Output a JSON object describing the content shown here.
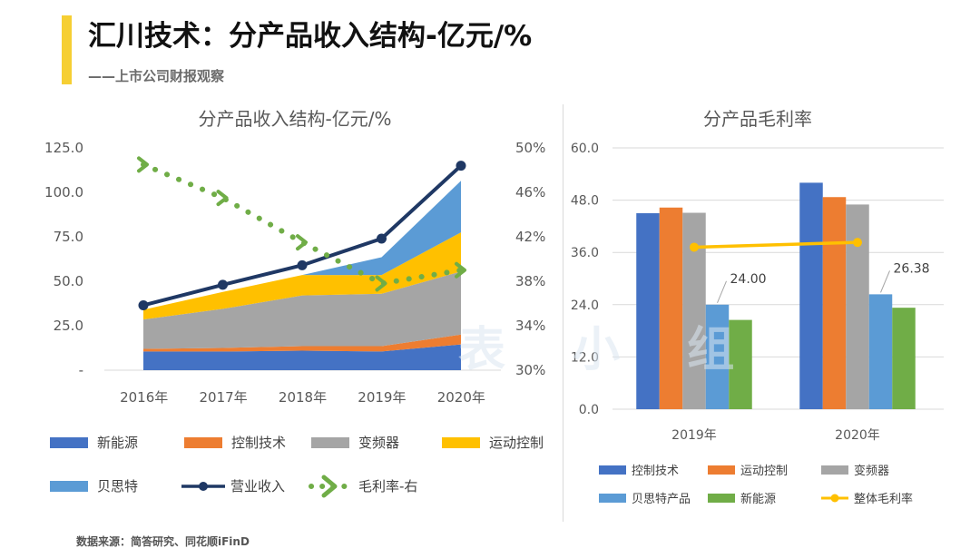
{
  "header": {
    "title": "汇川技术：分产品收入结构-亿元/%",
    "subtitle": "——上市公司财报观察"
  },
  "watermark": "表 小 组",
  "footer": {
    "source": "数据来源：简答研究、同花顺iFinD"
  },
  "colors": {
    "accent": "#f6cf33",
    "new_energy": "#4472c4",
    "control_tech": "#ed7d31",
    "inverter": "#a5a5a5",
    "motion_control": "#ffc000",
    "bes": "#5b9bd5",
    "revenue": "#1f3864",
    "margin_right": "#70ad47",
    "margin_green": "#70ad47",
    "overall_margin": "#ffc000"
  },
  "chart_data": [
    {
      "type": "area",
      "title": "分产品收入结构-亿元/%",
      "categories": [
        "2016年",
        "2017年",
        "2018年",
        "2019年",
        "2020年"
      ],
      "y_ticks": [
        "125.0",
        "100.0",
        "75.0",
        "50.0",
        "25.0",
        "-"
      ],
      "ylim": [
        0,
        125
      ],
      "y2_ticks": [
        "50%",
        "46%",
        "42%",
        "38%",
        "34%",
        "30%"
      ],
      "y2lim": [
        30,
        50
      ],
      "grid": false,
      "legend_position": "bottom",
      "series": [
        {
          "name": "新能源",
          "kind": "stacked-area",
          "color_key": "new_energy",
          "values": [
            10.5,
            10.5,
            11.0,
            10.5,
            14.5
          ]
        },
        {
          "name": "控制技术",
          "kind": "stacked-area",
          "color_key": "control_tech",
          "values": [
            1.5,
            2.0,
            2.5,
            3.0,
            5.5
          ]
        },
        {
          "name": "变频器",
          "kind": "stacked-area",
          "color_key": "inverter",
          "values": [
            16.5,
            22.0,
            28.5,
            29.5,
            35.5
          ]
        },
        {
          "name": "运动控制",
          "kind": "stacked-area",
          "color_key": "motion_control",
          "values": [
            5.5,
            9.5,
            11.5,
            10.5,
            22.0
          ]
        },
        {
          "name": "贝思特",
          "kind": "stacked-area",
          "color_key": "bes",
          "values": [
            0,
            0,
            0,
            10.0,
            29.0
          ]
        },
        {
          "name": "营业收入",
          "kind": "line",
          "color_key": "revenue",
          "values": [
            36.5,
            48.0,
            59.0,
            74.0,
            115.0
          ]
        },
        {
          "name": "毛利率-右",
          "kind": "dotted-line",
          "axis": "right",
          "color_key": "margin_right",
          "values": [
            48.5,
            45.5,
            41.5,
            37.8,
            39.0
          ]
        }
      ]
    },
    {
      "type": "bar",
      "title": "分产品毛利率",
      "categories": [
        "2019年",
        "2020年"
      ],
      "y_ticks": [
        "60.0",
        "48.0",
        "36.0",
        "24.0",
        "12.0",
        "0.0"
      ],
      "ylim": [
        0,
        60
      ],
      "grid": true,
      "legend_position": "bottom",
      "series": [
        {
          "name": "控制技术",
          "kind": "bar",
          "color_key": "new_energy",
          "values": [
            45.0,
            52.0
          ]
        },
        {
          "name": "运动控制",
          "kind": "bar",
          "color_key": "control_tech",
          "values": [
            46.3,
            48.7
          ]
        },
        {
          "name": "变频器",
          "kind": "bar",
          "color_key": "inverter",
          "values": [
            45.1,
            47.0
          ]
        },
        {
          "name": "贝思特产品",
          "kind": "bar",
          "color_key": "bes",
          "values": [
            24.0,
            26.38
          ]
        },
        {
          "name": "新能源",
          "kind": "bar",
          "color_key": "margin_green",
          "values": [
            20.5,
            23.3
          ]
        },
        {
          "name": "整体毛利率",
          "kind": "line",
          "color_key": "overall_margin",
          "values": [
            37.2,
            38.3
          ]
        }
      ],
      "data_labels": [
        {
          "series": "贝思特产品",
          "category": "2019年",
          "text": "24.00"
        },
        {
          "series": "贝思特产品",
          "category": "2020年",
          "text": "26.38"
        }
      ]
    }
  ]
}
